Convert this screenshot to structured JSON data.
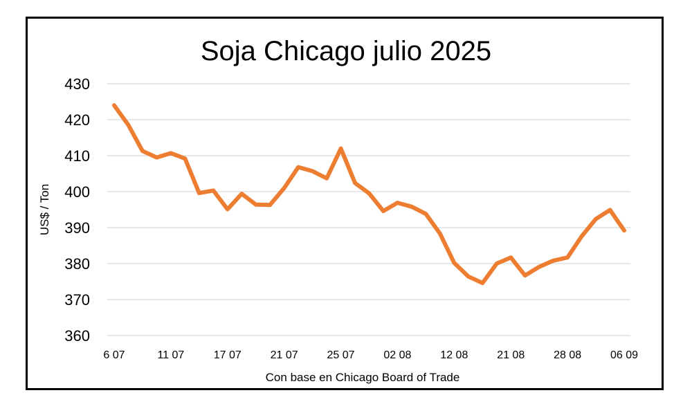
{
  "chart_data": {
    "type": "line",
    "title": "Soja Chicago julio 2025",
    "xlabel": "Con base en Chicago Board of Trade",
    "ylabel": "US$ / Ton",
    "ylim": [
      360,
      430
    ],
    "yticks": [
      360,
      370,
      380,
      390,
      400,
      410,
      420,
      430
    ],
    "grid": true,
    "legend": "none",
    "x_tick_labels": [
      {
        "label": "6 07",
        "index": 0
      },
      {
        "label": "11 07",
        "index": 4
      },
      {
        "label": "17 07",
        "index": 8
      },
      {
        "label": "21 07",
        "index": 12
      },
      {
        "label": "25 07",
        "index": 16
      },
      {
        "label": "02 08",
        "index": 20
      },
      {
        "label": "12 08",
        "index": 24
      },
      {
        "label": "21 08",
        "index": 28
      },
      {
        "label": "28 08",
        "index": 32
      },
      {
        "label": "06 09",
        "index": 36
      }
    ],
    "series": [
      {
        "color": "#ED7D31",
        "values": [
          424,
          418.5,
          411.3,
          409.5,
          410.7,
          409.2,
          399.6,
          400.3,
          395.1,
          399.4,
          396.4,
          396.3,
          401,
          406.8,
          405.7,
          403.7,
          412,
          402.4,
          399.5,
          394.6,
          396.9,
          395.8,
          393.8,
          388.3,
          380.2,
          376.4,
          374.6,
          380,
          381.7,
          376.7,
          379.1,
          380.8,
          381.7,
          387.6,
          392.4,
          394.9,
          389.2
        ]
      }
    ]
  }
}
